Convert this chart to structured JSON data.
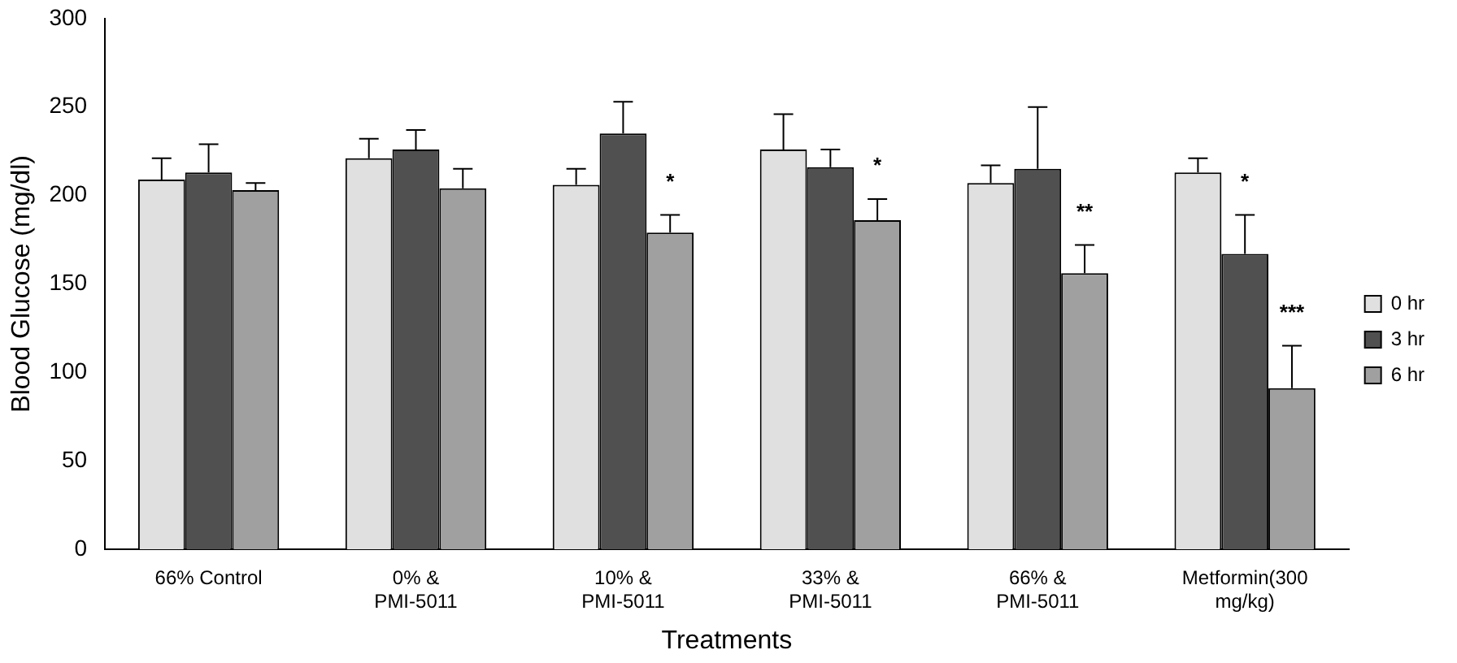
{
  "chart_data": {
    "type": "bar",
    "xlabel": "Treatments",
    "ylabel": "Blood Glucose (mg/dl)",
    "categories": [
      "66% Control",
      "0% & PMI-5011",
      "10% & PMI-5011",
      "33% & PMI-5011",
      "66% & PMI-5011",
      "Metformin(300 mg/kg)"
    ],
    "series": [
      {
        "name": "0 hr",
        "color": "#e0e0e0",
        "values": [
          209,
          221,
          206,
          226,
          207,
          213
        ],
        "errors": [
          [
            209,
            221
          ],
          [
            221,
            232
          ],
          [
            206,
            215
          ],
          [
            226,
            246
          ],
          [
            207,
            217
          ],
          [
            213,
            221
          ]
        ]
      },
      {
        "name": "3 hr",
        "color": "#505050",
        "values": [
          213,
          226,
          235,
          216,
          215,
          167
        ],
        "errors": [
          [
            213,
            229
          ],
          [
            226,
            237
          ],
          [
            235,
            253
          ],
          [
            216,
            226
          ],
          [
            215,
            250
          ],
          [
            167,
            189
          ]
        ]
      },
      {
        "name": "6 hr",
        "color": "#a0a0a0",
        "values": [
          203,
          204,
          179,
          186,
          156,
          91
        ],
        "errors": [
          [
            203,
            207
          ],
          [
            204,
            215
          ],
          [
            179,
            189
          ],
          [
            186,
            198
          ],
          [
            156,
            172
          ],
          [
            91,
            115
          ]
        ]
      }
    ],
    "ylim": [
      0,
      300
    ],
    "yticks": [
      0,
      50,
      100,
      150,
      200,
      250,
      300
    ],
    "grid": false,
    "legend": "right",
    "annotations": [
      "*",
      "*",
      "**",
      "*",
      "***"
    ]
  }
}
